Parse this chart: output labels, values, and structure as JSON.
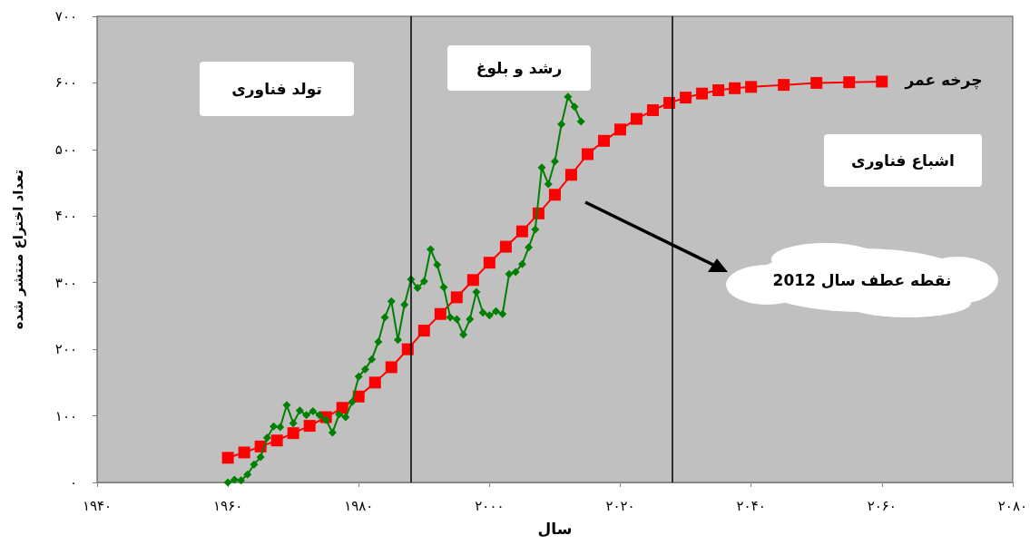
{
  "chart_data": {
    "type": "line",
    "xlabel": "سال",
    "ylabel": "تعداد اختراع منتشر شده",
    "xlim": [
      1940,
      2080
    ],
    "xticks": [
      {
        "value": 1940,
        "label": "۱۹۴۰"
      },
      {
        "value": 1960,
        "label": "۱۹۶۰"
      },
      {
        "value": 1980,
        "label": "۱۹۸۰"
      },
      {
        "value": 2000,
        "label": "۲۰۰۰"
      },
      {
        "value": 2020,
        "label": "۲۰۲۰"
      },
      {
        "value": 2040,
        "label": "۲۰۴۰"
      },
      {
        "value": 2060,
        "label": "۲۰۶۰"
      },
      {
        "value": 2080,
        "label": "۲۰۸۰"
      }
    ],
    "ylim": [
      0,
      700
    ],
    "yticks": [
      {
        "value": 0,
        "label": "۰"
      },
      {
        "value": 100,
        "label": "۱۰۰"
      },
      {
        "value": 200,
        "label": "۲۰۰"
      },
      {
        "value": 300,
        "label": "۳۰۰"
      },
      {
        "value": 400,
        "label": "۴۰۰"
      },
      {
        "value": 500,
        "label": "۵۰۰"
      },
      {
        "value": 600,
        "label": "۶۰۰"
      },
      {
        "value": 700,
        "label": "۷۰۰"
      }
    ],
    "grid": false,
    "series": [
      {
        "color": "#ff0000",
        "marker": "square",
        "x": [
          1960,
          1962.5,
          1965,
          1967.5,
          1970,
          1972.5,
          1975,
          1977.5,
          1980,
          1982.5,
          1985,
          1987.5,
          1990,
          1992.5,
          1995,
          1997.5,
          2000,
          2002.5,
          2005,
          2007.5,
          2010,
          2012.5,
          2015,
          2017.5,
          2020,
          2022.5,
          2025,
          2027.5,
          2030,
          2032.5,
          2035,
          2037.5,
          2040,
          2045,
          2050,
          2055,
          2060
        ],
        "values": [
          37,
          45,
          54,
          63,
          74,
          85,
          98,
          112,
          129,
          150,
          173,
          200,
          228,
          253,
          278,
          304,
          330,
          354,
          377,
          404,
          432,
          462,
          493,
          513,
          530,
          546,
          559,
          570,
          578,
          584,
          589,
          592,
          594,
          597,
          600,
          601,
          602
        ]
      },
      {
        "color": "#008000",
        "marker": "diamond",
        "x": [
          1960,
          1961,
          1962,
          1963,
          1964,
          1965,
          1966,
          1967,
          1968,
          1969,
          1970,
          1971,
          1972,
          1973,
          1974,
          1975,
          1976,
          1977,
          1978,
          1979,
          1980,
          1981,
          1982,
          1983,
          1984,
          1985,
          1986,
          1987,
          1988,
          1989,
          1990,
          1991,
          1992,
          1993,
          1994,
          1995,
          1996,
          1997,
          1998,
          1999,
          2000,
          2001,
          2002,
          2003,
          2004,
          2005,
          2006,
          2007,
          2008,
          2009,
          2010,
          2011,
          2012,
          2013,
          2014
        ],
        "values": [
          0,
          4,
          3,
          12,
          27,
          38,
          67,
          84,
          83,
          116,
          89,
          108,
          101,
          107,
          101,
          94,
          75,
          102,
          98,
          121,
          159,
          170,
          185,
          211,
          248,
          272,
          214,
          267,
          305,
          292,
          302,
          350,
          327,
          293,
          248,
          245,
          222,
          245,
          286,
          255,
          251,
          257,
          253,
          313,
          316,
          328,
          353,
          380,
          473,
          448,
          482,
          538,
          579,
          564,
          542
        ]
      }
    ],
    "ref_lines": [
      {
        "axis": "x",
        "value": 1988,
        "color": "#000000"
      },
      {
        "axis": "x",
        "value": 2028,
        "color": "#000000"
      }
    ],
    "annotations": [
      "تولد فناوری",
      "رشد و بلوغ",
      "اشباع فناوری",
      "چرخه عمر",
      "نقطه عطف سال 2012"
    ]
  }
}
